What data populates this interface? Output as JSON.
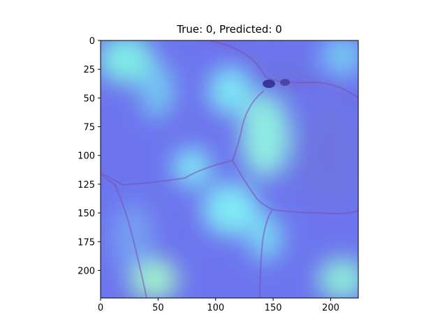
{
  "title": "True: 0, Predicted: 0",
  "image": {
    "description_colormap": "jet",
    "blend": "heatmap overlay on histology tissue"
  },
  "axes": {
    "x_ticks": [
      "0",
      "50",
      "100",
      "150",
      "200"
    ],
    "y_ticks": [
      "0",
      "25",
      "50",
      "75",
      "100",
      "125",
      "150",
      "175",
      "200"
    ],
    "x_range": [
      0,
      224
    ],
    "y_range": [
      0,
      224
    ]
  },
  "colors": {
    "base": "#6f78ee",
    "hot": "#7ff5ee",
    "membrane": "#7a4fb0"
  }
}
